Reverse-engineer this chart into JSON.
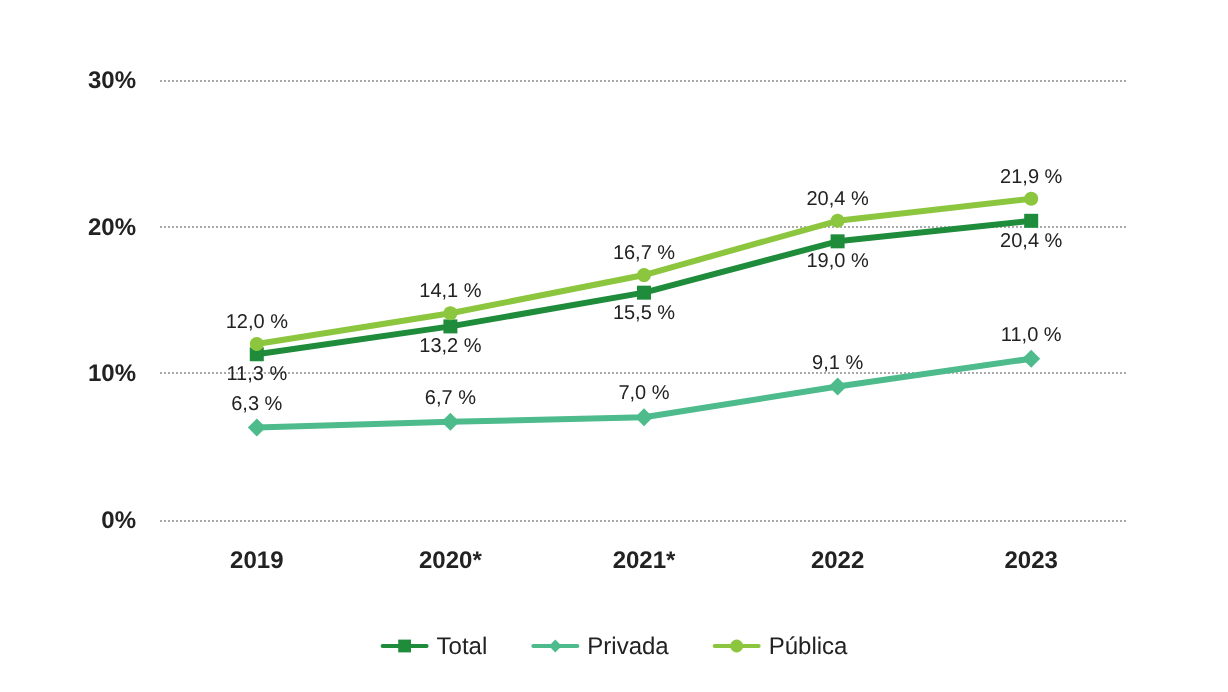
{
  "chart_data": {
    "type": "line",
    "categories": [
      "2019",
      "2020*",
      "2021*",
      "2022",
      "2023"
    ],
    "series": [
      {
        "name": "Total",
        "color": "#1e8c3a",
        "marker": "square",
        "values": [
          11.3,
          13.2,
          15.5,
          19.0,
          20.4
        ],
        "value_labels": [
          "11,3 %",
          "13,2 %",
          "15,5 %",
          "19,0 %",
          "20,4 %"
        ]
      },
      {
        "name": "Privada",
        "color": "#4dbb8c",
        "marker": "diamond",
        "values": [
          6.3,
          6.7,
          7.0,
          9.1,
          11.0
        ],
        "value_labels": [
          "6,3 %",
          "6,7 %",
          "7,0 %",
          "9,1 %",
          "11,0 %"
        ]
      },
      {
        "name": "Pública",
        "color": "#8cc63f",
        "marker": "circle",
        "values": [
          12.0,
          14.1,
          16.7,
          20.4,
          21.9
        ],
        "value_labels": [
          "12,0 %",
          "14,1 %",
          "16,7 %",
          "20,4 %",
          "21,9 %"
        ]
      }
    ],
    "ylim": [
      0,
      30
    ],
    "yticks": [
      {
        "value": 0,
        "label": "0%"
      },
      {
        "value": 10,
        "label": "10%"
      },
      {
        "value": 20,
        "label": "20%"
      },
      {
        "value": 30,
        "label": "30%"
      }
    ],
    "grid": "y",
    "legend": "bottom",
    "line_style": "solid"
  }
}
